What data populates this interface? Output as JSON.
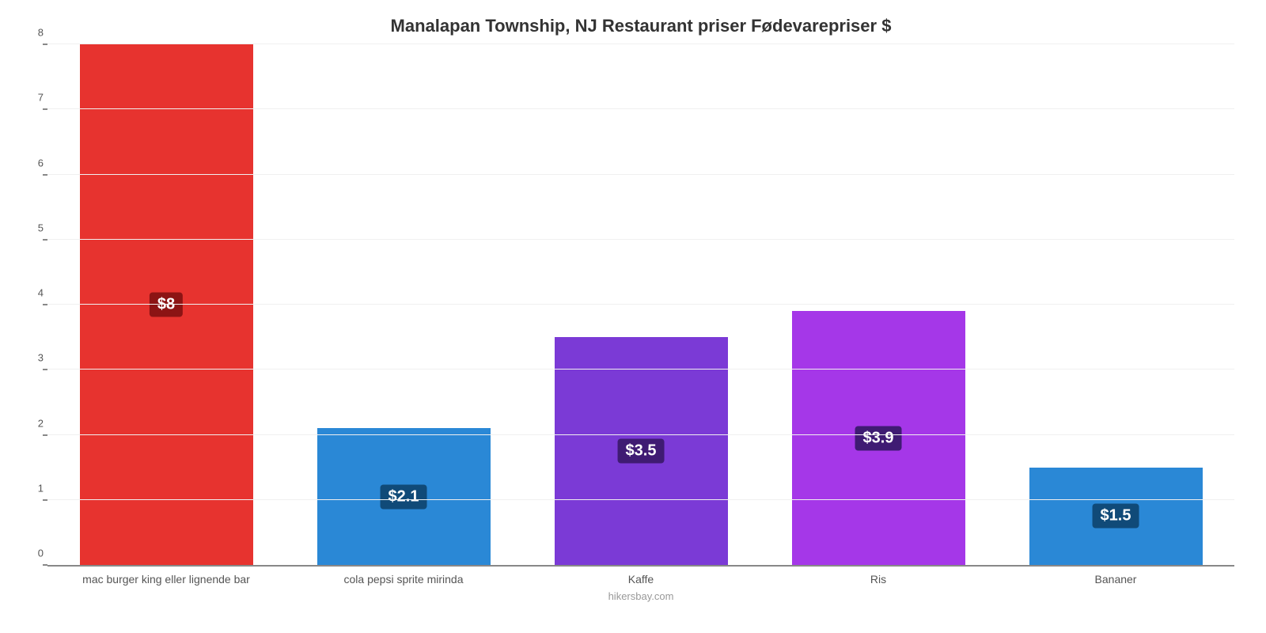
{
  "chart": {
    "type": "bar",
    "title": "Manalapan Township, NJ Restaurant priser Fødevarepriser $",
    "title_fontsize": 22,
    "title_color": "#333333",
    "categories": [
      "mac burger king eller lignende bar",
      "cola pepsi sprite mirinda",
      "Kaffe",
      "Ris",
      "Bananer"
    ],
    "values": [
      8,
      2.1,
      3.5,
      3.9,
      1.5
    ],
    "value_labels": [
      "$8",
      "$2.1",
      "$3.5",
      "$3.9",
      "$1.5"
    ],
    "bar_colors": [
      "#e7332f",
      "#2a88d6",
      "#7b3ad6",
      "#a537e8",
      "#2a88d6"
    ],
    "label_bg_colors": [
      "#8c1414",
      "#104a78",
      "#3f1b73",
      "#3f1b73",
      "#104a78"
    ],
    "ylim": [
      0,
      8
    ],
    "yticks": [
      0,
      1,
      2,
      3,
      4,
      5,
      6,
      7,
      8
    ],
    "ytick_labels": [
      "0",
      "1",
      "2",
      "3",
      "4",
      "5",
      "6",
      "7",
      "8"
    ],
    "background_color": "#ffffff",
    "grid_color": "#f0f0f0",
    "axis_color": "#888888",
    "tick_label_color": "#555555",
    "tick_label_fontsize": 13,
    "x_label_fontsize": 14,
    "value_label_fontsize": 20,
    "bar_width": 0.73,
    "credit": "hikersbay.com",
    "credit_color": "#999999"
  }
}
